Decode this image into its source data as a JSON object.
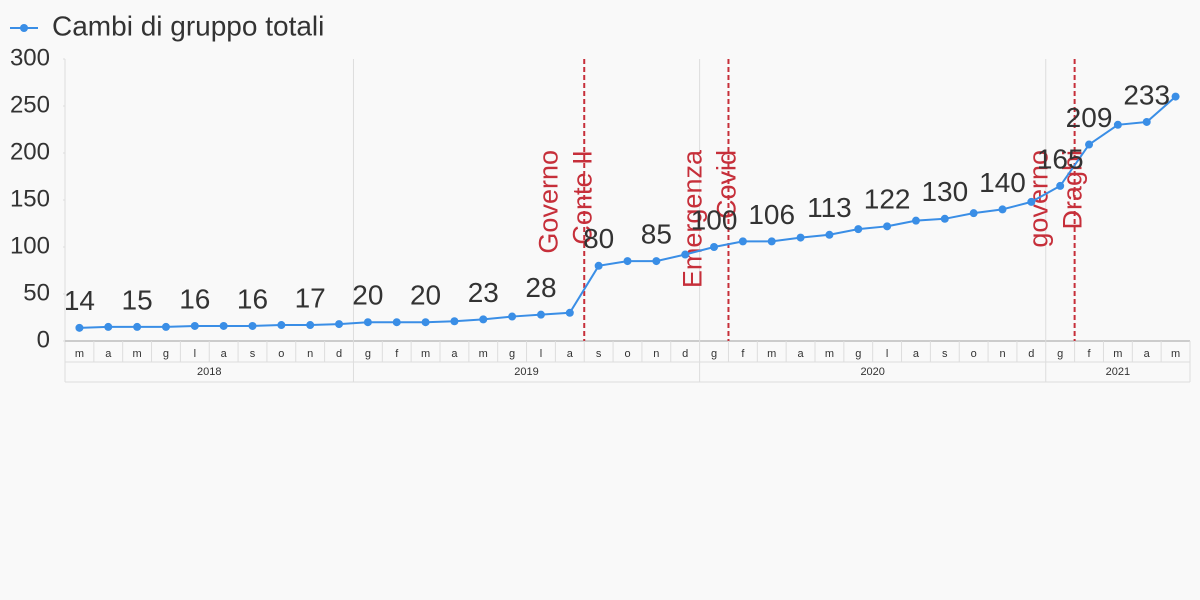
{
  "chart_data": {
    "type": "line",
    "series": [
      {
        "name": "Cambi di gruppo totali",
        "color": "#3a8ee6",
        "values": [
          14,
          15,
          15,
          15,
          16,
          16,
          16,
          17,
          17,
          18,
          20,
          20,
          20,
          21,
          23,
          26,
          28,
          30,
          80,
          85,
          85,
          92,
          100,
          106,
          106,
          110,
          113,
          119,
          122,
          128,
          130,
          136,
          140,
          148,
          165,
          209,
          230,
          233,
          260
        ],
        "value_labels": [
          "14",
          null,
          "15",
          null,
          "16",
          null,
          "16",
          null,
          "17",
          null,
          "20",
          null,
          "20",
          null,
          "23",
          null,
          "28",
          null,
          "80",
          null,
          "85",
          null,
          "100",
          null,
          "106",
          null,
          "113",
          null,
          "122",
          null,
          "130",
          null,
          "140",
          null,
          "165",
          "209",
          null,
          "233",
          null
        ]
      }
    ],
    "category_groups": [
      {
        "label": "2018",
        "categories": [
          "m",
          "a",
          "m",
          "g",
          "l",
          "a",
          "s",
          "o",
          "n",
          "d"
        ]
      },
      {
        "label": "2019",
        "categories": [
          "g",
          "f",
          "m",
          "a",
          "m",
          "g",
          "l",
          "a",
          "s",
          "o",
          "n",
          "d"
        ]
      },
      {
        "label": "2020",
        "categories": [
          "g",
          "f",
          "m",
          "a",
          "m",
          "g",
          "l",
          "a",
          "s",
          "o",
          "n",
          "d"
        ]
      },
      {
        "label": "2021",
        "categories": [
          "g",
          "f",
          "m",
          "a",
          "m"
        ]
      }
    ],
    "ylim": [
      0,
      300
    ],
    "yticks": [
      0,
      50,
      100,
      150,
      200,
      250,
      300
    ],
    "annotations": [
      {
        "lines": [
          "Governo",
          "Conte II"
        ],
        "group": 1,
        "before_category": 8,
        "color": "#c62f3a"
      },
      {
        "lines": [
          "Emergenza",
          "Covid"
        ],
        "group": 2,
        "before_category": 1,
        "color": "#c62f3a"
      },
      {
        "lines": [
          "governo",
          "Draghi"
        ],
        "group": 3,
        "before_category": 1,
        "color": "#c62f3a"
      }
    ],
    "legend": "top-left"
  }
}
